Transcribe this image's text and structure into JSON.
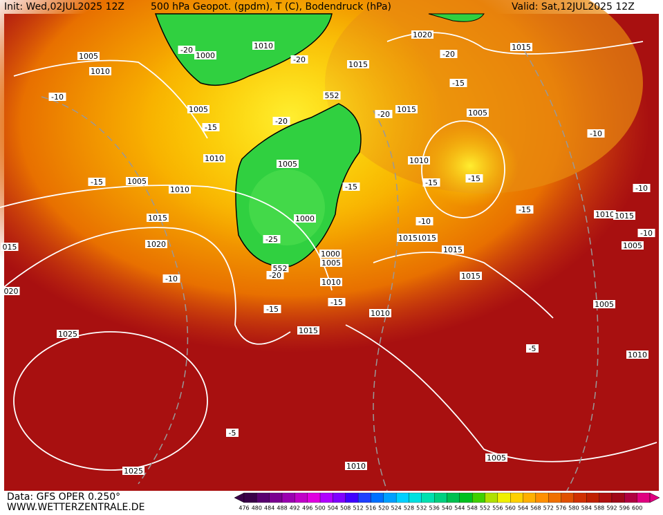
{
  "header": {
    "init": "Init: Wed,02JUL2025 12Z",
    "title": "500 hPa Geopot. (gpdm), T (C), Bodendruck (hPa)",
    "valid": "Valid: Sat,12JUL2025 12Z"
  },
  "footer": {
    "data_source": "Data: GFS OPER 0.250°",
    "website": "WWW.WETTERZENTRALE.DE"
  },
  "map_labels": [
    "1005",
    "1010",
    "-10",
    "1000",
    "-20",
    "1005",
    "-15",
    "1010",
    "-15",
    "1005",
    "1010",
    "1015",
    "1020",
    "-10",
    "1025",
    "1025",
    "-5",
    "-20",
    "1010",
    "552",
    "-20",
    "1005",
    "1000",
    "-25",
    "552",
    "-20",
    "1000",
    "1005",
    "1010",
    "-15",
    "-15",
    "1015",
    "1015",
    "-20",
    "1020",
    "1015",
    "-20",
    "-15",
    "1015",
    "1005",
    "-10",
    "1010",
    "-15",
    "-15",
    "-10",
    "1015",
    "1015",
    "-15",
    "1015",
    "1015",
    "1010",
    "1010",
    "1005",
    "1005",
    "1010",
    "-10",
    "-5",
    "1005",
    "-10",
    "1010",
    "1015",
    "015",
    "020",
    "-15"
  ],
  "colorbar": {
    "labels": [
      476,
      480,
      484,
      488,
      492,
      496,
      500,
      504,
      508,
      512,
      516,
      520,
      524,
      528,
      532,
      536,
      540,
      544,
      548,
      552,
      556,
      560,
      564,
      568,
      572,
      576,
      580,
      584,
      588,
      592,
      596,
      600
    ],
    "colors": [
      "#3a0048",
      "#5a0070",
      "#7a0090",
      "#9a00b0",
      "#c000c8",
      "#e000e0",
      "#b000ff",
      "#8000ff",
      "#4000ff",
      "#2040ff",
      "#0070ff",
      "#00a0ff",
      "#00d0ff",
      "#00e0e0",
      "#00e0b0",
      "#00d080",
      "#00c050",
      "#00c020",
      "#40d000",
      "#b0e000",
      "#f0f000",
      "#ffd000",
      "#ffb000",
      "#ff9000",
      "#f07000",
      "#e05000",
      "#d03000",
      "#c02000",
      "#b01010",
      "#a00818",
      "#b00040",
      "#e00080"
    ]
  }
}
